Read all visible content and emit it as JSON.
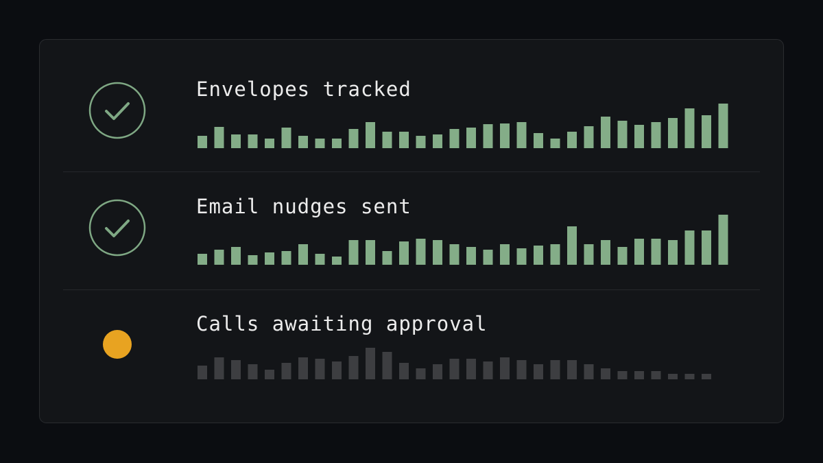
{
  "rows": [
    {
      "label": "Envelopes tracked",
      "color": "#84ad88",
      "values": [
        18,
        31,
        20,
        20,
        14,
        30,
        18,
        14,
        14,
        28,
        38,
        24,
        24,
        18,
        20,
        28,
        30,
        35,
        36,
        38,
        22,
        14,
        24,
        32,
        46,
        40,
        34,
        38,
        44,
        58,
        48,
        65
      ]
    },
    {
      "label": "Email nudges sent",
      "color": "#84ad88",
      "values": [
        16,
        22,
        26,
        14,
        18,
        20,
        30,
        16,
        12,
        36,
        36,
        20,
        34,
        38,
        36,
        30,
        26,
        22,
        30,
        24,
        28,
        30,
        56,
        30,
        36,
        26,
        38,
        38,
        36,
        50,
        50,
        73
      ]
    },
    {
      "label": "Calls awaiting approval",
      "color": "#3d3e41",
      "values": [
        20,
        32,
        28,
        22,
        14,
        24,
        32,
        30,
        26,
        34,
        46,
        40,
        24,
        16,
        22,
        30,
        30,
        26,
        32,
        28,
        22,
        28,
        28,
        22,
        16,
        12,
        12,
        12,
        8,
        8,
        8
      ]
    }
  ]
}
